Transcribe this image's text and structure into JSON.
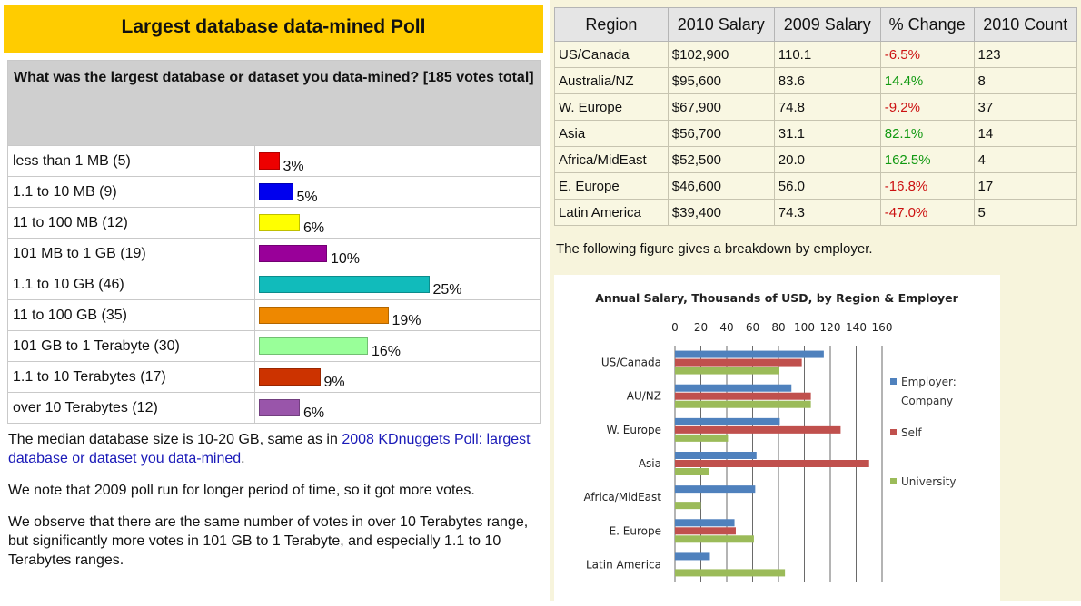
{
  "poll": {
    "title": "Largest database data-mined Poll",
    "question": "What was the largest database or dataset you data-mined? [185 votes total]",
    "rows": [
      {
        "label": "less than 1 MB (5)",
        "pct": "3%",
        "value": 3,
        "color": "#ee0000"
      },
      {
        "label": "1.1 to 10 MB (9)",
        "pct": "5%",
        "value": 5,
        "color": "#0000ee"
      },
      {
        "label": "11 to 100 MB (12)",
        "pct": "6%",
        "value": 6,
        "color": "#ffff00"
      },
      {
        "label": "101 MB to 1 GB (19)",
        "pct": "10%",
        "value": 10,
        "color": "#990099"
      },
      {
        "label": "1.1 to 10 GB (46)",
        "pct": "25%",
        "value": 25,
        "color": "#11bbbb"
      },
      {
        "label": "11 to 100 GB (35)",
        "pct": "19%",
        "value": 19,
        "color": "#ee8800"
      },
      {
        "label": "101 GB to 1 Terabyte (30)",
        "pct": "16%",
        "value": 16,
        "color": "#99ff99"
      },
      {
        "label": "1.1 to 10 Terabytes (17)",
        "pct": "9%",
        "value": 9,
        "color": "#cc3300"
      },
      {
        "label": "over 10 Terabytes (12)",
        "pct": "6%",
        "value": 6,
        "color": "#9955aa"
      }
    ],
    "para1_before": "The median database size is 10-20 GB, same as in ",
    "para1_link": "2008 KDnuggets Poll: largest database or dataset you data-mined",
    "para1_after": ".",
    "para2": "We note that 2009 poll run for longer period of time, so it got more votes.",
    "para3": "We observe that there are the same number of votes in over 10 Terabytes range, but significantly more votes in 101 GB to 1 Terabyte, and especially 1.1 to 10 Terabytes ranges."
  },
  "salary_table": {
    "headers": [
      "Region",
      "2010 Salary",
      "2009 Salary",
      "% Change",
      "2010 Count"
    ],
    "rows": [
      {
        "region": "US/Canada",
        "s2010": "$102,900",
        "s2009": "110.1",
        "change": "-6.5%",
        "count": "123",
        "sign": "neg"
      },
      {
        "region": "Australia/NZ",
        "s2010": "$95,600",
        "s2009": "83.6",
        "change": "14.4%",
        "count": "8",
        "sign": "pos"
      },
      {
        "region": "W. Europe",
        "s2010": "$67,900",
        "s2009": "74.8",
        "change": "-9.2%",
        "count": "37",
        "sign": "neg"
      },
      {
        "region": "Asia",
        "s2010": "$56,700",
        "s2009": "31.1",
        "change": "82.1%",
        "count": "14",
        "sign": "pos"
      },
      {
        "region": "Africa/MidEast",
        "s2010": "$52,500",
        "s2009": "20.0",
        "change": "162.5%",
        "count": "4",
        "sign": "pos"
      },
      {
        "region": "E. Europe",
        "s2010": "$46,600",
        "s2009": "56.0",
        "change": "-16.8%",
        "count": "17",
        "sign": "neg"
      },
      {
        "region": "Latin America",
        "s2010": "$39,400",
        "s2009": "74.3",
        "change": "-47.0%",
        "count": "5",
        "sign": "neg"
      }
    ]
  },
  "figure_caption": "The following figure gives a breakdown by employer.",
  "chart_data": {
    "type": "bar",
    "orientation": "horizontal",
    "title": "Annual Salary, Thousands of USD, by Region & Employer",
    "categories": [
      "US/Canada",
      "AU/NZ",
      "W. Europe",
      "Asia",
      "Africa/MidEast",
      "E. Europe",
      "Latin America"
    ],
    "xlim": [
      0,
      160
    ],
    "xticks": [
      "0",
      "20",
      "40",
      "60",
      "80",
      "100",
      "120",
      "140",
      "160"
    ],
    "grid": true,
    "legend_position": "right",
    "series": [
      {
        "name": "Employer: Company",
        "color": "#4f81bd",
        "values": [
          115,
          90,
          81,
          63,
          62,
          46,
          27
        ]
      },
      {
        "name": "Self",
        "color": "#c0504d",
        "values": [
          98,
          105,
          128,
          150,
          null,
          47,
          null
        ]
      },
      {
        "name": "University",
        "color": "#9bbb59",
        "values": [
          80,
          105,
          41,
          26,
          20,
          61,
          85
        ]
      }
    ]
  }
}
